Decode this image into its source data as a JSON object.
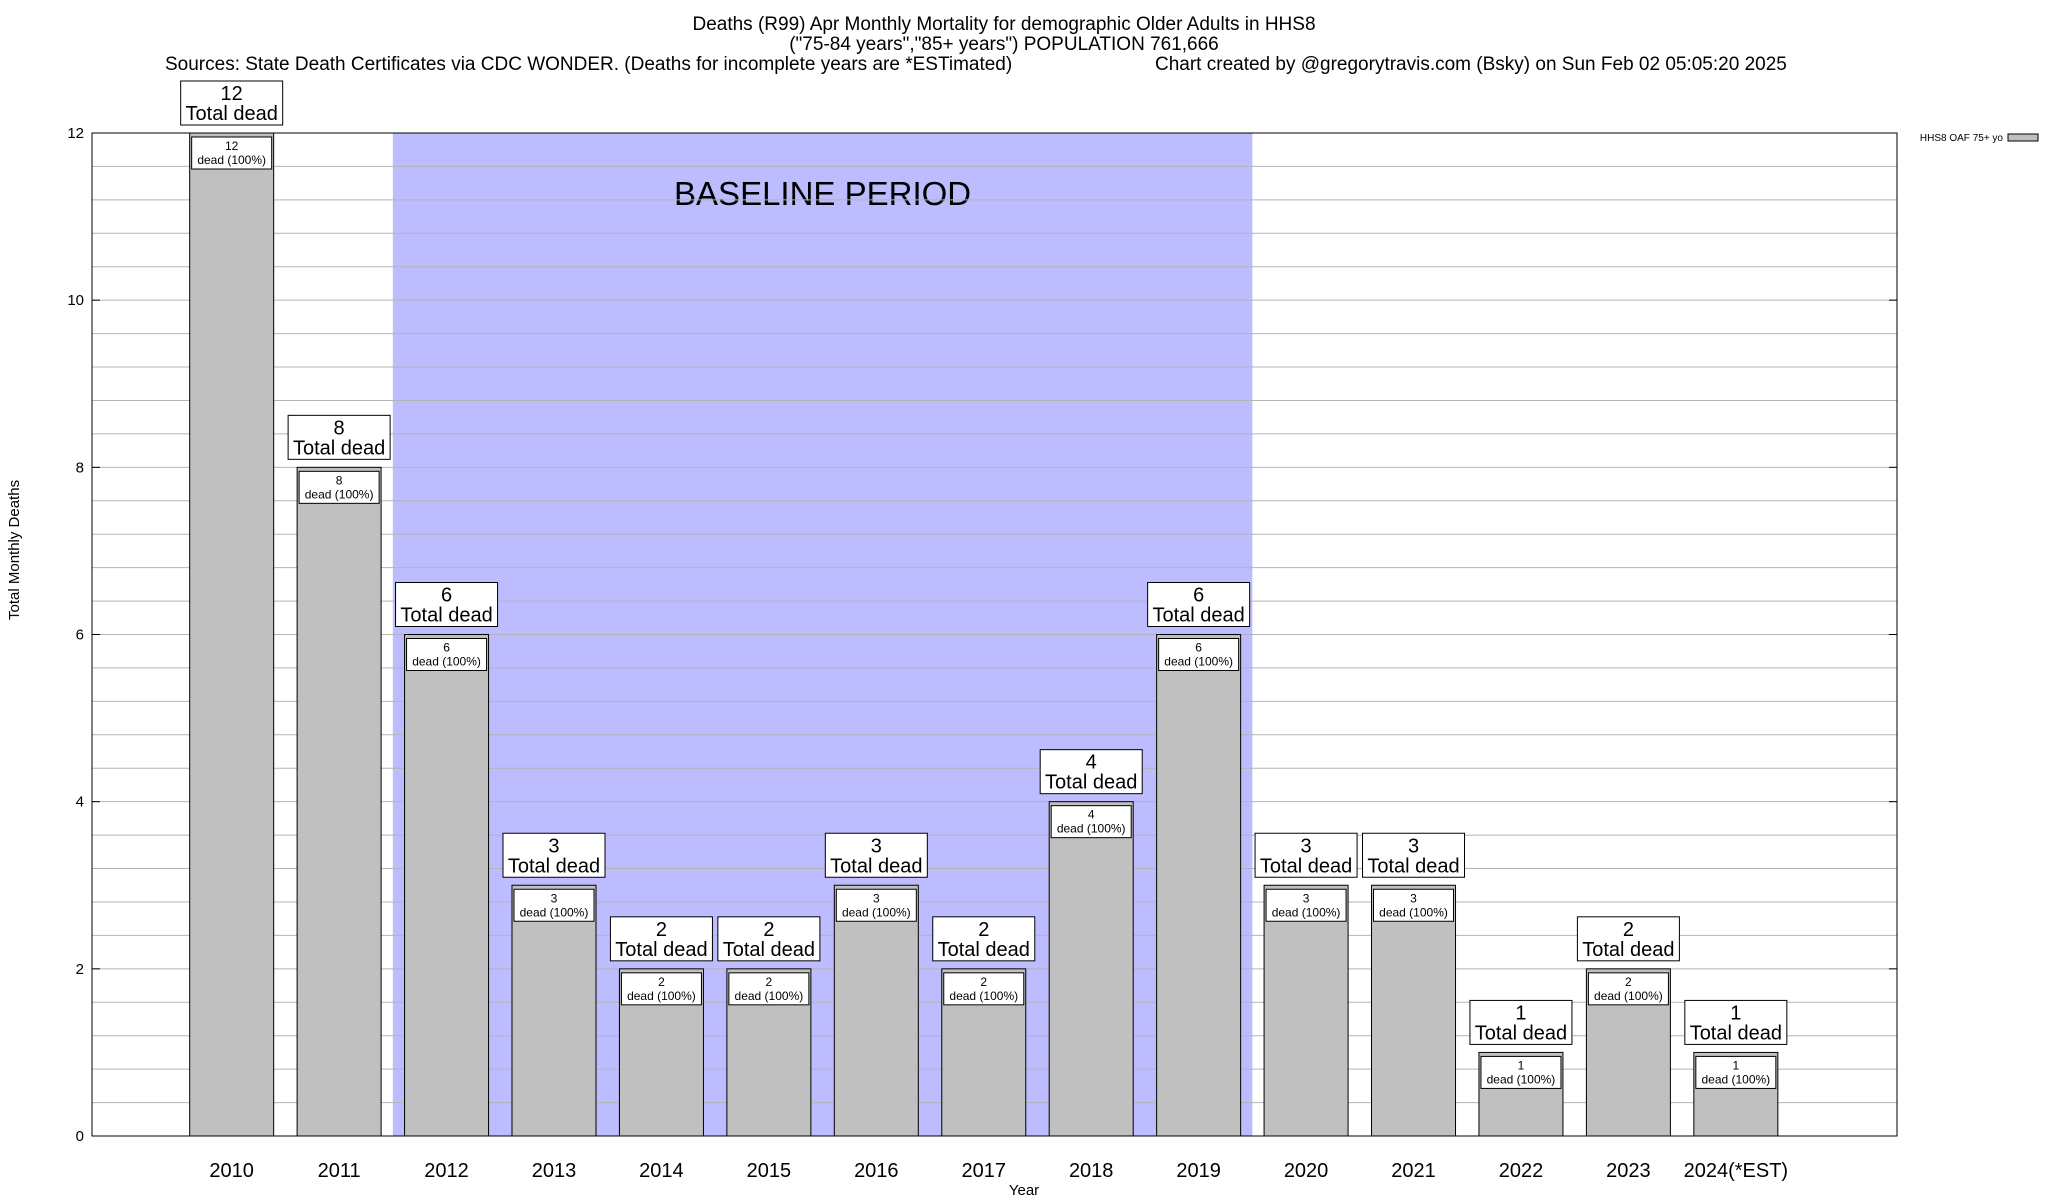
{
  "title_line1": "Deaths (R99) Apr Monthly Mortality for demographic Older Adults in HHS8",
  "title_line2": "(\"75-84 years\",\"85+ years\") POPULATION 761,666",
  "sources": "Sources: State Death Certificates via CDC WONDER. (Deaths for incomplete years are *ESTimated)",
  "credit": "Chart created by @gregorytravis.com (Bsky) on Sun Feb 02 05:05:20 2025",
  "baseline_label": "BASELINE PERIOD",
  "total_label_suffix": "Total dead",
  "inner_label_suffix": "dead (100%)",
  "colors": {
    "bar": "#c0c0c0",
    "baseline": "#bcbcff",
    "grid": "#b4b4b4"
  },
  "chart_data": {
    "type": "bar",
    "title": "Deaths (R99) Apr Monthly Mortality for demographic Older Adults in HHS8",
    "subtitle": "(\"75-84 years\",\"85+ years\") POPULATION 761,666",
    "xlabel": "Year",
    "ylabel": "Total Monthly Deaths",
    "categories": [
      "2010",
      "2011",
      "2012",
      "2013",
      "2014",
      "2015",
      "2016",
      "2017",
      "2018",
      "2019",
      "2020",
      "2021",
      "2022",
      "2023",
      "2024(*EST)"
    ],
    "series": [
      {
        "name": "HHS8 OAF 75+ yo",
        "values": [
          12,
          8,
          6,
          3,
          2,
          2,
          3,
          2,
          4,
          6,
          3,
          3,
          1,
          2,
          1
        ]
      }
    ],
    "ylim": [
      0,
      12
    ],
    "yticks": [
      0,
      2,
      4,
      6,
      8,
      10,
      12
    ],
    "baseline_period": [
      "2012",
      "2019"
    ],
    "grid": true,
    "legend": "top-right"
  }
}
